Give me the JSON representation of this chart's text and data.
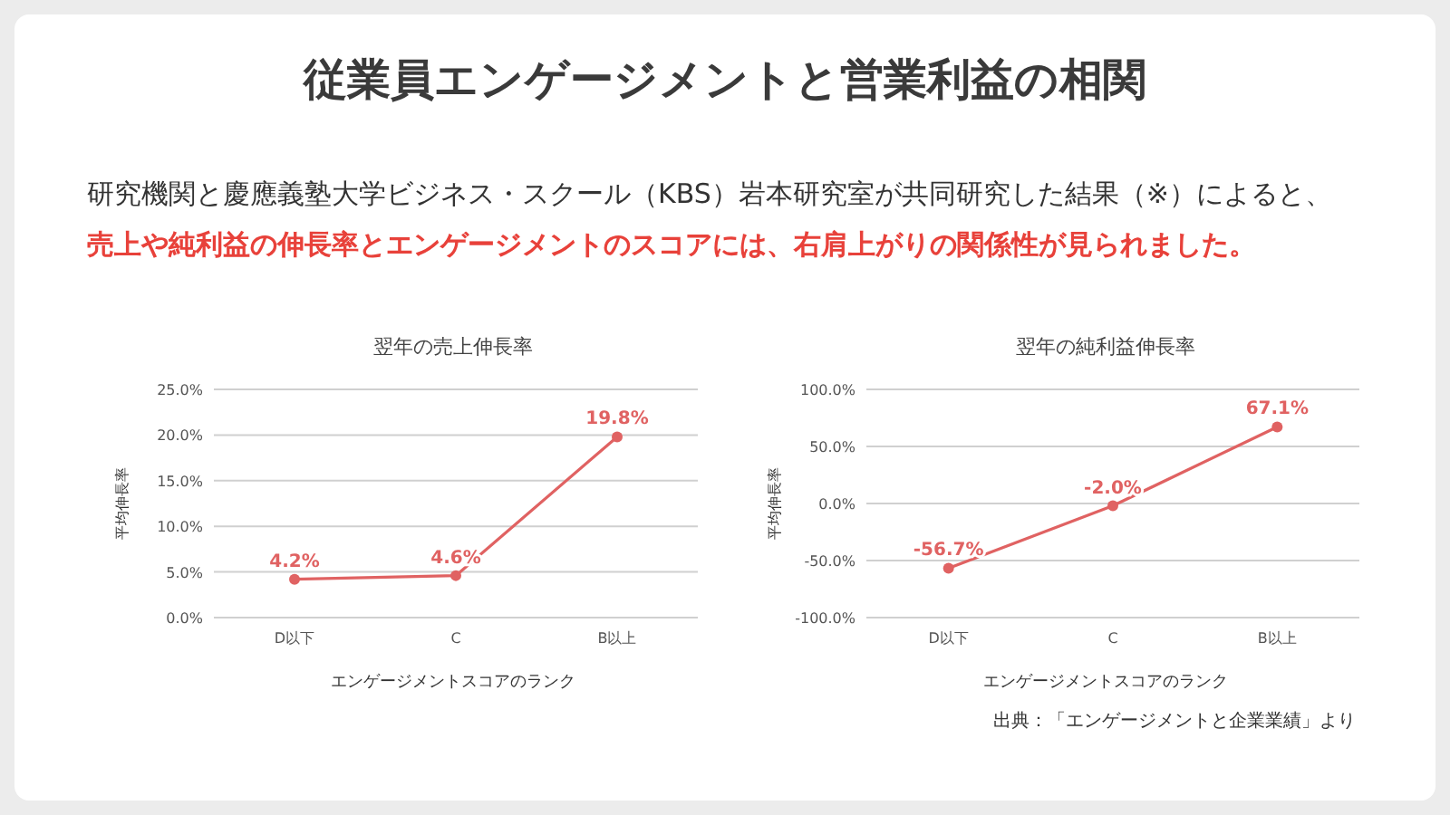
{
  "chart_data": [
    {
      "type": "line",
      "title": "翌年の売上伸長率",
      "xlabel": "エンゲージメントスコアのランク",
      "ylabel": "平均伸長率",
      "categories": [
        "D以下",
        "C",
        "B以上"
      ],
      "series": [
        {
          "color": "#e06262",
          "values": [
            4.2,
            4.6,
            19.8
          ],
          "value_labels": [
            "4.2%",
            "4.6%",
            "19.8%"
          ]
        }
      ],
      "ylim": [
        0,
        25
      ],
      "yticks": [
        {
          "value": 0,
          "label": "0.0%"
        },
        {
          "value": 5,
          "label": "5.0%"
        },
        {
          "value": 10,
          "label": "10.0%"
        },
        {
          "value": 15,
          "label": "15.0%"
        },
        {
          "value": 20,
          "label": "20.0%"
        },
        {
          "value": 25,
          "label": "25.0%"
        }
      ],
      "grid": "y",
      "marker": "circle",
      "line_style": "solid",
      "annotations": [
        "従業員エンゲージメントと営業利益の相関",
        "研究機関と慶應義塾大学ビジネス・スクール（KBS）岩本研究室が共同研究した結果（※）によると、",
        "売上や純利益の伸長率とエンゲージメントのスコアには、右肩上がりの関係性が見られました。"
      ]
    },
    {
      "type": "line",
      "title": "翌年の純利益伸長率",
      "xlabel": "エンゲージメントスコアのランク",
      "ylabel": "平均伸長率",
      "categories": [
        "D以下",
        "C",
        "B以上"
      ],
      "series": [
        {
          "color": "#e06262",
          "values": [
            -56.7,
            -2.0,
            67.1
          ],
          "value_labels": [
            "-56.7%",
            "-2.0%",
            "67.1%"
          ]
        }
      ],
      "ylim": [
        -100,
        100
      ],
      "yticks": [
        {
          "value": -100,
          "label": "-100.0%"
        },
        {
          "value": -50,
          "label": "-50.0%"
        },
        {
          "value": 0,
          "label": "0.0%"
        },
        {
          "value": 50,
          "label": "50.0%"
        },
        {
          "value": 100,
          "label": "100.0%"
        }
      ],
      "grid": "y",
      "marker": "circle",
      "line_style": "solid",
      "annotations": [
        "出典：「エンゲージメントと企業業績」より"
      ]
    }
  ]
}
